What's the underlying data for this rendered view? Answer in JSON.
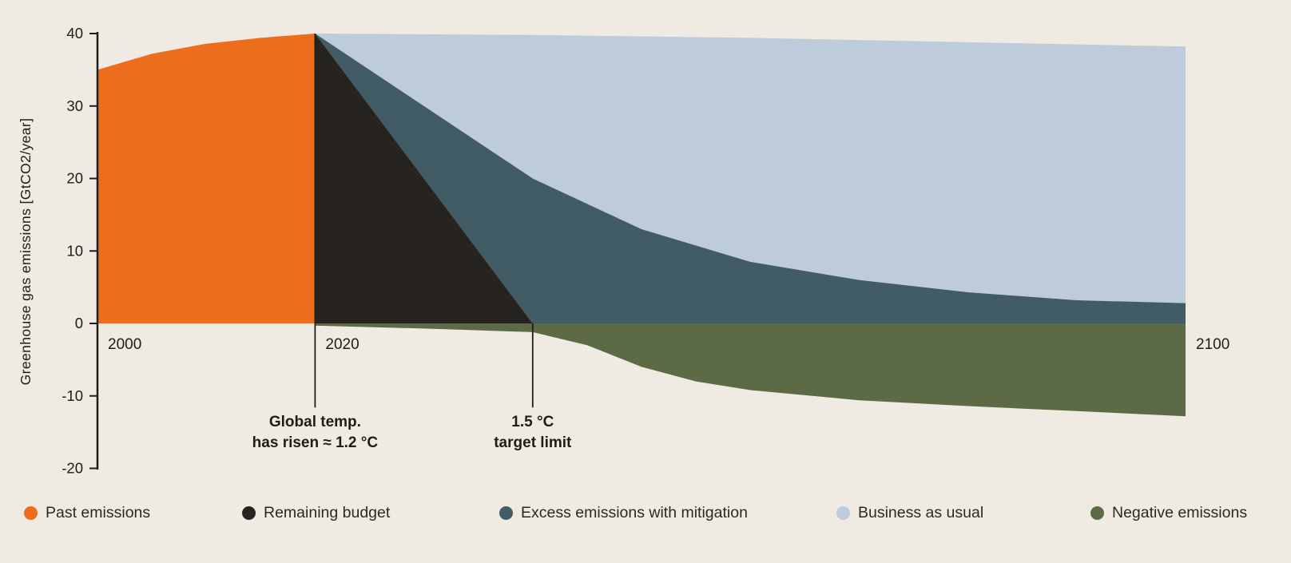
{
  "chart_data": {
    "type": "area",
    "title": "",
    "ylabel": "Greenhouse gas emissions [GtCO2/year]",
    "xlabel": "",
    "xlim": [
      2000,
      2100
    ],
    "ylim": [
      -20,
      40
    ],
    "grid": false,
    "legend_position": "bottom",
    "y_ticks": [
      40,
      30,
      20,
      10,
      0,
      -10,
      -20
    ],
    "x_ticks": [
      {
        "year": 2000,
        "label": "2000"
      },
      {
        "year": 2020,
        "label": "2020"
      },
      {
        "year": 2100,
        "label": "2100"
      }
    ],
    "series": [
      {
        "id": "business-as-usual",
        "name": "Business as usual",
        "color": "#BECBDA",
        "upper": [
          [
            2020,
            40
          ],
          [
            2040,
            39.8
          ],
          [
            2060,
            39.4
          ],
          [
            2080,
            38.8
          ],
          [
            2100,
            38.2
          ]
        ],
        "lower": [
          [
            2020,
            40
          ],
          [
            2040,
            20
          ],
          [
            2050,
            13
          ],
          [
            2060,
            8.5
          ],
          [
            2070,
            6
          ],
          [
            2080,
            4.3
          ],
          [
            2090,
            3.2
          ],
          [
            2100,
            2.8
          ]
        ]
      },
      {
        "id": "excess-emissions-with-mitigation",
        "name": "Excess emissions with mitigation",
        "color": "#425C66",
        "upper": [
          [
            2020,
            40
          ],
          [
            2040,
            20
          ],
          [
            2050,
            13
          ],
          [
            2060,
            8.5
          ],
          [
            2070,
            6
          ],
          [
            2080,
            4.3
          ],
          [
            2090,
            3.2
          ],
          [
            2100,
            2.8
          ]
        ],
        "lower": [
          [
            2020,
            40
          ],
          [
            2040,
            0
          ],
          [
            2100,
            0
          ]
        ]
      },
      {
        "id": "remaining-budget",
        "name": "Remaining budget",
        "color": "#272420",
        "upper": [
          [
            2020,
            40
          ],
          [
            2040,
            0
          ]
        ],
        "lower": [
          [
            2020,
            0
          ],
          [
            2040,
            0
          ]
        ]
      },
      {
        "id": "past-emissions",
        "name": "Past emissions",
        "color": "#EC6E1C",
        "upper": [
          [
            2000,
            35
          ],
          [
            2005,
            37.2
          ],
          [
            2010,
            38.6
          ],
          [
            2015,
            39.4
          ],
          [
            2020,
            40
          ]
        ],
        "lower": [
          [
            2000,
            0
          ],
          [
            2020,
            0
          ]
        ]
      },
      {
        "id": "negative-emissions",
        "name": "Negative emissions",
        "color": "#5C6B45",
        "upper": [
          [
            2020,
            0
          ],
          [
            2100,
            0
          ]
        ],
        "lower": [
          [
            2020,
            -0.3
          ],
          [
            2030,
            -0.7
          ],
          [
            2040,
            -1.2
          ],
          [
            2045,
            -3
          ],
          [
            2050,
            -6
          ],
          [
            2055,
            -8
          ],
          [
            2060,
            -9.2
          ],
          [
            2070,
            -10.6
          ],
          [
            2080,
            -11.4
          ],
          [
            2090,
            -12.1
          ],
          [
            2100,
            -12.8
          ]
        ]
      }
    ],
    "annotations": [
      {
        "x": 2020,
        "line_from": 40,
        "line_to": -11.6,
        "lines": [
          "Global temp.",
          "has risen ≈ 1.2 °C"
        ]
      },
      {
        "x": 2040,
        "line_from": 0,
        "line_to": -11.6,
        "lines": [
          "1.5 °C",
          "target limit"
        ]
      }
    ]
  },
  "legend": {
    "items": [
      {
        "label": "Past emissions",
        "color": "#EC6E1C"
      },
      {
        "label": "Remaining budget",
        "color": "#272420"
      },
      {
        "label": "Excess emissions with mitigation",
        "color": "#425C66"
      },
      {
        "label": "Business as usual",
        "color": "#BECBDA"
      },
      {
        "label": "Negative emissions",
        "color": "#5C6B45"
      }
    ]
  },
  "colors": {
    "background": "#EFEAE2",
    "axis": "#1F1D1A",
    "text": "#2B2925"
  }
}
